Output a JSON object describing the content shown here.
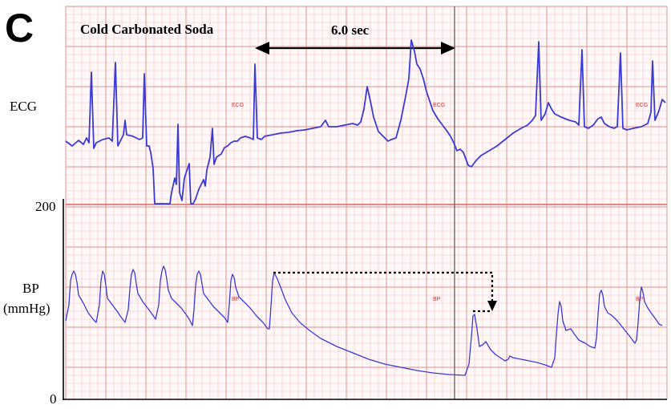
{
  "panel_letter": "C",
  "title": "Cold Carbonated Soda",
  "interval_label": "6.0 sec",
  "ecg_label": "ECG",
  "bp_label_line1": "BP",
  "bp_label_line2": "(mmHg)",
  "bp_ticks": [
    "200",
    "0"
  ],
  "trace_annotations": {
    "ecg": "ECG",
    "bp": "BP"
  },
  "colors": {
    "trace": "#3a3ad8",
    "grid_minor": "#f3c0c0",
    "grid_major": "#e58a8a",
    "divider": "#e06060",
    "marker": "#000000"
  },
  "chart_data": {
    "type": "line",
    "title": "Cold Carbonated Soda",
    "series": [
      {
        "name": "ECG",
        "note": "qualitative waveform, no y scale"
      },
      {
        "name": "BP",
        "ylabel": "BP (mmHg)",
        "ylim": [
          0,
          200
        ]
      }
    ],
    "annotations": [
      "6.0 sec"
    ]
  }
}
